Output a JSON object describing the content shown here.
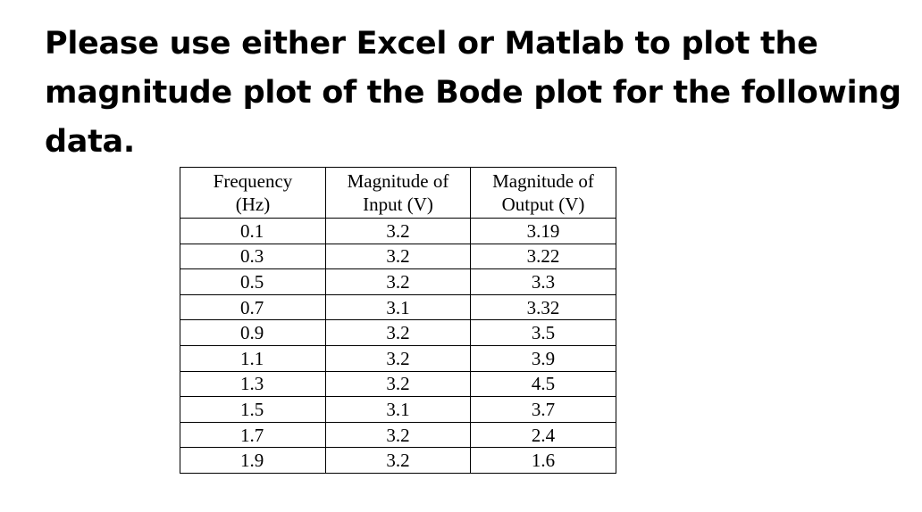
{
  "prompt": {
    "text": "Please use either Excel or Matlab to plot the magnitude plot of the Bode plot for the following data."
  },
  "table": {
    "headers": [
      [
        "Frequency",
        "(Hz)"
      ],
      [
        "Magnitude of",
        "Input (V)"
      ],
      [
        "Magnitude of",
        "Output (V)"
      ]
    ],
    "rows": [
      [
        "0.1",
        "3.2",
        "3.19"
      ],
      [
        "0.3",
        "3.2",
        "3.22"
      ],
      [
        "0.5",
        "3.2",
        "3.3"
      ],
      [
        "0.7",
        "3.1",
        "3.32"
      ],
      [
        "0.9",
        "3.2",
        "3.5"
      ],
      [
        "1.1",
        "3.2",
        "3.9"
      ],
      [
        "1.3",
        "3.2",
        "4.5"
      ],
      [
        "1.5",
        "3.1",
        "3.7"
      ],
      [
        "1.7",
        "3.2",
        "2.4"
      ],
      [
        "1.9",
        "3.2",
        "1.6"
      ]
    ]
  }
}
